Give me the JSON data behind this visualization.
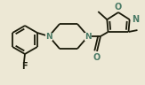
{
  "bg_color": "#ede8d5",
  "bond_color": "#1a1a0a",
  "N_color": "#4a7a65",
  "O_color": "#4a7a65",
  "F_color": "#1a1a0a",
  "lw": 1.3,
  "fs": 6.5,
  "figsize": [
    1.63,
    0.96
  ],
  "dpi": 100,
  "xlim": [
    0,
    163
  ],
  "ylim": [
    0,
    96
  ]
}
